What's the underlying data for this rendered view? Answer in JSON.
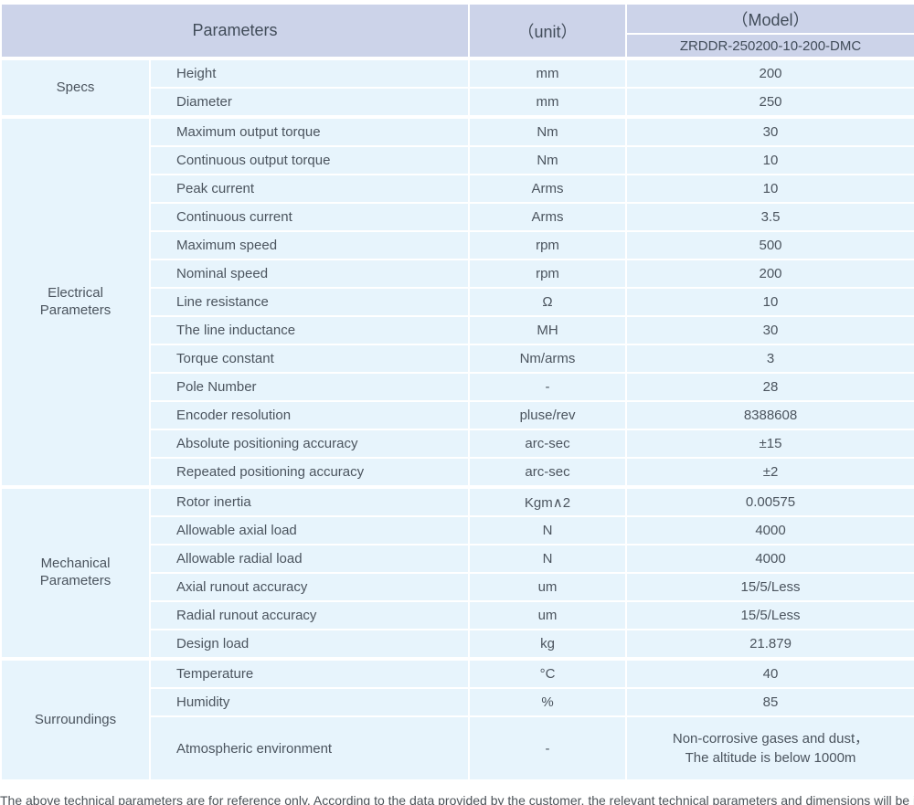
{
  "header": {
    "parameters_label": "Parameters",
    "unit_label": "（unit）",
    "model_label": "（Model）",
    "model_value": "ZRDDR-250200-10-200-DMC"
  },
  "sections": [
    {
      "category": "Specs",
      "rows": [
        {
          "name": "Height",
          "unit": "mm",
          "value": "200"
        },
        {
          "name": "Diameter",
          "unit": "mm",
          "value": "250"
        }
      ]
    },
    {
      "category": "Electrical Parameters",
      "rows": [
        {
          "name": "Maximum output torque",
          "unit": "Nm",
          "value": "30"
        },
        {
          "name": "Continuous output torque",
          "unit": "Nm",
          "value": "10"
        },
        {
          "name": "Peak current",
          "unit": "Arms",
          "value": "10"
        },
        {
          "name": "Continuous current",
          "unit": "Arms",
          "value": "3.5"
        },
        {
          "name": "Maximum speed",
          "unit": "rpm",
          "value": "500"
        },
        {
          "name": "Nominal speed",
          "unit": "rpm",
          "value": "200"
        },
        {
          "name": "Line resistance",
          "unit": "Ω",
          "value": "10"
        },
        {
          "name": "The line inductance",
          "unit": "MH",
          "value": "30"
        },
        {
          "name": "Torque constant",
          "unit": "Nm/arms",
          "value": "3"
        },
        {
          "name": "Pole Number",
          "unit": "-",
          "value": "28"
        },
        {
          "name": "Encoder resolution",
          "unit": "pluse/rev",
          "value": "8388608"
        },
        {
          "name": "Absolute positioning accuracy",
          "unit": "arc-sec",
          "value": "±15"
        },
        {
          "name": "Repeated positioning accuracy",
          "unit": "arc-sec",
          "value": "±2"
        }
      ]
    },
    {
      "category": "Mechanical Parameters",
      "rows": [
        {
          "name": "Rotor inertia",
          "unit": "Kgm∧2",
          "value": "0.00575"
        },
        {
          "name": "Allowable axial load",
          "unit": "N",
          "value": "4000"
        },
        {
          "name": "Allowable radial load",
          "unit": "N",
          "value": "4000"
        },
        {
          "name": "Axial runout accuracy",
          "unit": "um",
          "value": "15/5/Less"
        },
        {
          "name": "Radial runout accuracy",
          "unit": "um",
          "value": "15/5/Less"
        },
        {
          "name": "Design load",
          "unit": "kg",
          "value": "21.879"
        }
      ]
    },
    {
      "category": "Surroundings",
      "rows": [
        {
          "name": "Temperature",
          "unit": "°C",
          "value": "40"
        },
        {
          "name": "Humidity",
          "unit": "%",
          "value": "85"
        },
        {
          "name": "Atmospheric environment",
          "unit": "-",
          "value": "Non-corrosive gases and dust，\nThe altitude is below 1000m"
        }
      ]
    }
  ],
  "footnote": "The above technical parameters are for reference only. According to the data provided by the customer, the relevant technical parameters and dimensions will be issued."
}
